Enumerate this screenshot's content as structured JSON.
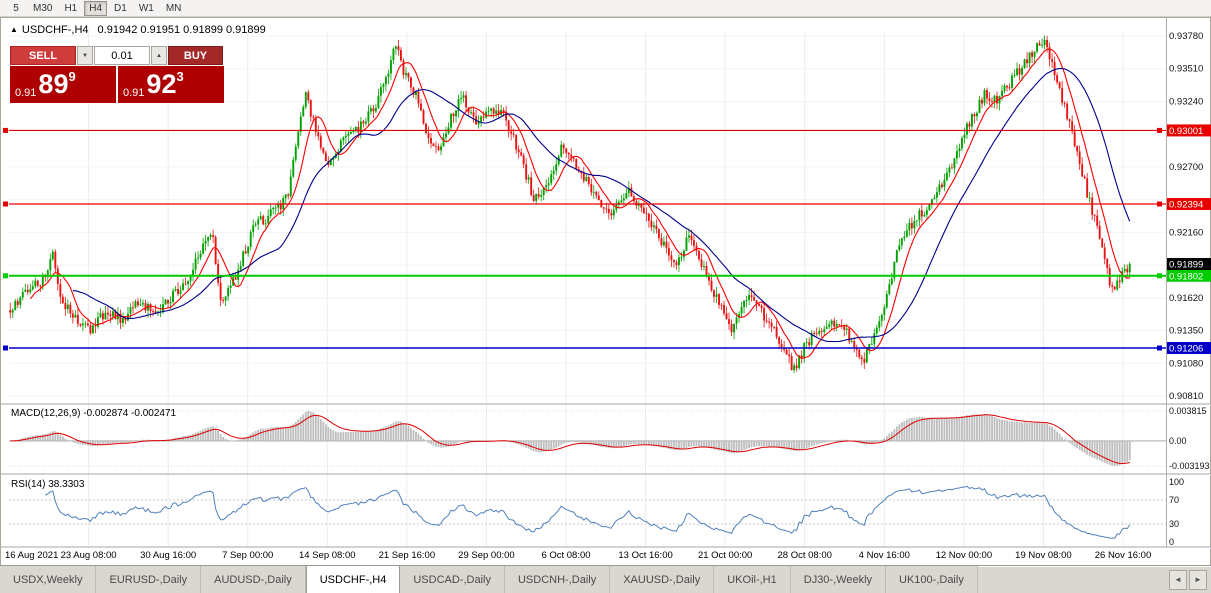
{
  "toolbar": {
    "timeframes": [
      {
        "label": "5",
        "active": false
      },
      {
        "label": "M30",
        "active": false
      },
      {
        "label": "H1",
        "active": false
      },
      {
        "label": "H4",
        "active": true
      },
      {
        "label": "D1",
        "active": false
      },
      {
        "label": "W1",
        "active": false
      },
      {
        "label": "MN",
        "active": false
      }
    ]
  },
  "chart_header": {
    "symbol_title": "USDCHF-,H4",
    "ohlc_values": "0.91942 0.91951 0.91899 0.91899"
  },
  "icons": {
    "collapse_trade_panel": "▲",
    "volume_down": "▼",
    "volume_up": "▲",
    "tabs_scroll_left": "◄",
    "tabs_scroll_right": "►"
  },
  "trade_panel": {
    "sell_label": "SELL",
    "buy_label": "BUY",
    "volume": "0.01",
    "sell_price_prefix": "0.91",
    "sell_price_big": "89",
    "sell_price_sup": "9",
    "buy_price_prefix": "0.91",
    "buy_price_big": "92",
    "buy_price_sup": "3",
    "sell_color": "#CE3C3C",
    "buy_color": "#A32929",
    "price_box_color": "#AE0000"
  },
  "chart_data": {
    "type": "candlestick",
    "title": "USDCHF-,H4",
    "up_color": "#00A000",
    "down_color": "#E81414",
    "ma_fast_color": "#FF0000",
    "ma_slow_color": "#00008B",
    "y_ticks": [
      "0.93780",
      "0.93510",
      "0.93240",
      "0.92970",
      "0.92700",
      "0.92430",
      "0.92160",
      "0.91890",
      "0.91620",
      "0.91350",
      "0.91080",
      "0.90810"
    ],
    "price_lines": [
      {
        "price": 0.93001,
        "label": "0.93001",
        "color": "#E80000",
        "width": 1.2
      },
      {
        "price": 0.92394,
        "label": "0.92394",
        "color": "#E80000",
        "width": 1.2
      },
      {
        "price": 0.91802,
        "label": "0.91802",
        "color": "#00CC00",
        "width": 2
      },
      {
        "price": 0.91206,
        "label": "0.91206",
        "color": "#0000C8",
        "width": 1.4
      }
    ],
    "current_price": {
      "value": 0.91899,
      "label": "0.91899",
      "tag_color": "#000000"
    },
    "time_labels": [
      "16 Aug 2021",
      "23 Aug 08:00",
      "30 Aug 16:00",
      "7 Sep 00:00",
      "14 Sep 08:00",
      "21 Sep 16:00",
      "29 Sep 00:00",
      "6 Oct 08:00",
      "13 Oct 16:00",
      "21 Oct 00:00",
      "28 Oct 08:00",
      "4 Nov 16:00",
      "12 Nov 00:00",
      "19 Nov 08:00",
      "26 Nov 16:00"
    ],
    "candle_count": 448,
    "price_keypoints": [
      [
        0.0,
        0.9152
      ],
      [
        0.012,
        0.9165
      ],
      [
        0.03,
        0.9178
      ],
      [
        0.038,
        0.9196
      ],
      [
        0.046,
        0.916
      ],
      [
        0.06,
        0.9142
      ],
      [
        0.072,
        0.9133
      ],
      [
        0.085,
        0.9152
      ],
      [
        0.1,
        0.9142
      ],
      [
        0.115,
        0.9158
      ],
      [
        0.13,
        0.9149
      ],
      [
        0.145,
        0.9163
      ],
      [
        0.16,
        0.9176
      ],
      [
        0.172,
        0.9208
      ],
      [
        0.18,
        0.9218
      ],
      [
        0.188,
        0.9155
      ],
      [
        0.196,
        0.9168
      ],
      [
        0.205,
        0.9188
      ],
      [
        0.218,
        0.9222
      ],
      [
        0.232,
        0.923
      ],
      [
        0.248,
        0.9245
      ],
      [
        0.258,
        0.9308
      ],
      [
        0.264,
        0.933
      ],
      [
        0.272,
        0.9302
      ],
      [
        0.282,
        0.927
      ],
      [
        0.295,
        0.9288
      ],
      [
        0.31,
        0.9302
      ],
      [
        0.325,
        0.9318
      ],
      [
        0.336,
        0.9345
      ],
      [
        0.344,
        0.9372
      ],
      [
        0.352,
        0.9348
      ],
      [
        0.362,
        0.933
      ],
      [
        0.372,
        0.9296
      ],
      [
        0.381,
        0.9282
      ],
      [
        0.392,
        0.9308
      ],
      [
        0.404,
        0.9328
      ],
      [
        0.416,
        0.9304
      ],
      [
        0.428,
        0.932
      ],
      [
        0.441,
        0.9312
      ],
      [
        0.455,
        0.9282
      ],
      [
        0.468,
        0.9242
      ],
      [
        0.482,
        0.9262
      ],
      [
        0.494,
        0.9288
      ],
      [
        0.508,
        0.9268
      ],
      [
        0.522,
        0.9246
      ],
      [
        0.536,
        0.923
      ],
      [
        0.552,
        0.925
      ],
      [
        0.565,
        0.9236
      ],
      [
        0.58,
        0.9212
      ],
      [
        0.594,
        0.919
      ],
      [
        0.607,
        0.9214
      ],
      [
        0.621,
        0.9182
      ],
      [
        0.634,
        0.9156
      ],
      [
        0.645,
        0.9136
      ],
      [
        0.657,
        0.9164
      ],
      [
        0.671,
        0.915
      ],
      [
        0.688,
        0.9126
      ],
      [
        0.7,
        0.9102
      ],
      [
        0.712,
        0.9126
      ],
      [
        0.726,
        0.9136
      ],
      [
        0.741,
        0.9142
      ],
      [
        0.752,
        0.9126
      ],
      [
        0.761,
        0.9108
      ],
      [
        0.771,
        0.913
      ],
      [
        0.782,
        0.9162
      ],
      [
        0.794,
        0.9206
      ],
      [
        0.807,
        0.9226
      ],
      [
        0.82,
        0.9238
      ],
      [
        0.833,
        0.9256
      ],
      [
        0.846,
        0.9282
      ],
      [
        0.859,
        0.9312
      ],
      [
        0.871,
        0.933
      ],
      [
        0.883,
        0.9326
      ],
      [
        0.895,
        0.9342
      ],
      [
        0.906,
        0.9356
      ],
      [
        0.917,
        0.937
      ],
      [
        0.924,
        0.9374
      ],
      [
        0.932,
        0.9352
      ],
      [
        0.941,
        0.9322
      ],
      [
        0.95,
        0.9292
      ],
      [
        0.958,
        0.9262
      ],
      [
        0.967,
        0.9232
      ],
      [
        0.976,
        0.92
      ],
      [
        0.984,
        0.9168
      ],
      [
        0.992,
        0.918
      ],
      [
        1.0,
        0.919
      ]
    ]
  },
  "indicators": {
    "macd": {
      "label": "MACD(12,26,9) -0.002874 -0.002471",
      "values": [
        "-0.002874",
        "-0.002471"
      ],
      "axis_ticks": [
        "0.003815",
        "0.00",
        "-0.003193"
      ],
      "histogram_color": "#BDBDBD",
      "signal_color": "#E00000"
    },
    "rsi": {
      "label": "RSI(14) 38.3303",
      "value": "38.3303",
      "axis_ticks": [
        "100",
        "70",
        "30",
        "0"
      ],
      "levels": [
        70,
        30
      ],
      "line_color": "#4F81BD"
    }
  },
  "tabs": {
    "items": [
      {
        "label": "USDX,Weekly",
        "active": false
      },
      {
        "label": "EURUSD-,Daily",
        "active": false
      },
      {
        "label": "AUDUSD-,Daily",
        "active": false
      },
      {
        "label": "USDCHF-,H4",
        "active": true
      },
      {
        "label": "USDCAD-,Daily",
        "active": false
      },
      {
        "label": "USDCNH-,Daily",
        "active": false
      },
      {
        "label": "XAUUSD-,Daily",
        "active": false
      },
      {
        "label": "UKOil-,H1",
        "active": false
      },
      {
        "label": "DJ30-,Weekly",
        "active": false
      },
      {
        "label": "UK100-,Daily",
        "active": false
      }
    ]
  }
}
